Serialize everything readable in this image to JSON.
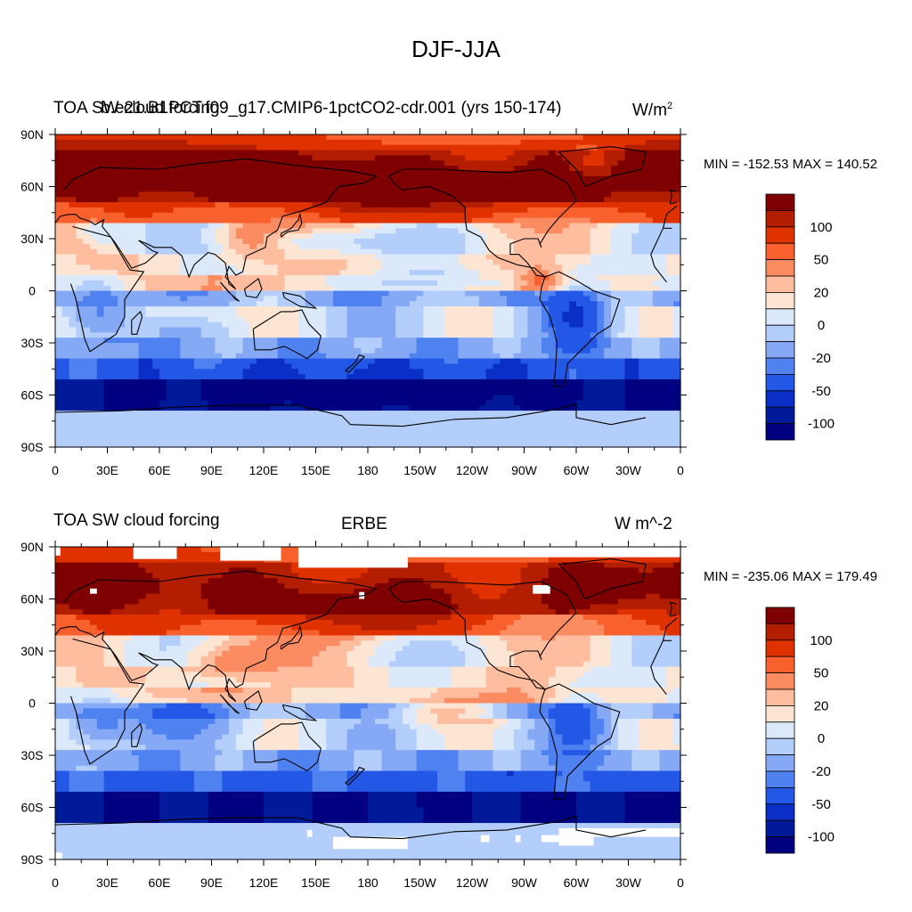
{
  "figure_title": "DJF-JJA",
  "chart_data": [
    {
      "type": "heatmap",
      "title_left": "TOA SW cloud forcing",
      "title_center_overlay": "b.e21.B1PCT.f09_g17.CMIP6-1pctCO2-cdr.001 (yrs 150-174)",
      "units": "W/m",
      "units_sup": "2",
      "min": -152.53,
      "max": 140.52,
      "minmax_label": "MIN = -152.53 MAX = 140.52",
      "x_ticks": [
        "0",
        "30E",
        "60E",
        "90E",
        "120E",
        "150E",
        "180",
        "150W",
        "120W",
        "90W",
        "60W",
        "30W",
        "0"
      ],
      "y_ticks": [
        "90N",
        "60N",
        "30N",
        "0",
        "30S",
        "60S",
        "90S"
      ],
      "colorbar_labels": [
        "100",
        "50",
        "20",
        "0",
        "-20",
        "-50",
        "-100"
      ],
      "colorbar_colors": [
        "#7f0000",
        "#b31d00",
        "#e03200",
        "#f8602d",
        "#fb8c62",
        "#fdbd9e",
        "#fde5d4",
        "#dbe9fa",
        "#b3cefa",
        "#86a9f5",
        "#4f82f0",
        "#2357e6",
        "#0a2fc7",
        "#001a99",
        "#000080"
      ],
      "anomalies": [
        {
          "lon": 20,
          "lat": 72,
          "sx": 55,
          "sy": 10,
          "v": 70
        },
        {
          "lon": 90,
          "lat": 70,
          "sx": 60,
          "sy": 9,
          "v": 60
        },
        {
          "lon": 170,
          "lat": 58,
          "sx": 50,
          "sy": 9,
          "v": 75
        },
        {
          "lon": 330,
          "lat": 70,
          "sx": 25,
          "sy": 8,
          "v": 55
        },
        {
          "lon": 312,
          "lat": 72,
          "sx": 14,
          "sy": 7,
          "v": -90
        },
        {
          "lon": 260,
          "lat": 58,
          "sx": 45,
          "sy": 10,
          "v": 50
        },
        {
          "lon": 110,
          "lat": 30,
          "sx": 14,
          "sy": 8,
          "v": 30
        },
        {
          "lon": 150,
          "lat": 28,
          "sx": 25,
          "sy": 5,
          "v": -25
        },
        {
          "lon": 25,
          "lat": 35,
          "sx": 10,
          "sy": 6,
          "v": -20
        },
        {
          "lon": 25,
          "lat": -12,
          "sx": 12,
          "sy": 12,
          "v": -40
        },
        {
          "lon": 300,
          "lat": -15,
          "sx": 12,
          "sy": 12,
          "v": -60
        },
        {
          "lon": 75,
          "lat": -12,
          "sx": 22,
          "sy": 5,
          "v": 15
        },
        {
          "lon": 240,
          "lat": 5,
          "sx": 45,
          "sy": 4,
          "v": -20
        },
        {
          "lon": 280,
          "lat": 5,
          "sx": 8,
          "sy": 5,
          "v": 35
        },
        {
          "lon": 180,
          "lat": -55,
          "sx": 60,
          "sy": 8,
          "v": -30
        }
      ]
    },
    {
      "type": "heatmap",
      "title_left": "TOA SW cloud forcing",
      "title_center": "ERBE",
      "units": "W m^-2",
      "min": -235.06,
      "max": 179.49,
      "minmax_label": "MIN = -235.06 MAX = 179.49",
      "x_ticks": [
        "0",
        "30E",
        "60E",
        "90E",
        "120E",
        "150E",
        "180",
        "150W",
        "120W",
        "90W",
        "60W",
        "30W",
        "0"
      ],
      "y_ticks": [
        "90N",
        "60N",
        "30N",
        "0",
        "30S",
        "60S",
        "90S"
      ],
      "colorbar_labels": [
        "100",
        "50",
        "20",
        "0",
        "-20",
        "-50",
        "-100"
      ],
      "colorbar_colors": [
        "#7f0000",
        "#b31d00",
        "#e03200",
        "#f8602d",
        "#fb8c62",
        "#fdbd9e",
        "#fde5d4",
        "#dbe9fa",
        "#b3cefa",
        "#86a9f5",
        "#4f82f0",
        "#2357e6",
        "#0a2fc7",
        "#001a99",
        "#000080"
      ],
      "anomalies": [
        {
          "lon": 25,
          "lat": 70,
          "sx": 50,
          "sy": 10,
          "v": 55
        },
        {
          "lon": 170,
          "lat": 55,
          "sx": 60,
          "sy": 10,
          "v": 60
        },
        {
          "lon": 320,
          "lat": 68,
          "sx": 20,
          "sy": 8,
          "v": 50
        },
        {
          "lon": 100,
          "lat": 25,
          "sx": 20,
          "sy": 8,
          "v": 35
        },
        {
          "lon": 70,
          "lat": -10,
          "sx": 25,
          "sy": 8,
          "v": -25
        },
        {
          "lon": 25,
          "lat": -12,
          "sx": 12,
          "sy": 10,
          "v": -35
        },
        {
          "lon": 300,
          "lat": -12,
          "sx": 12,
          "sy": 12,
          "v": -45
        },
        {
          "lon": 230,
          "lat": -5,
          "sx": 30,
          "sy": 5,
          "v": 25
        }
      ],
      "missing_boxes": [
        {
          "lon0": 0,
          "lon1": 3,
          "lat0": 85,
          "lat1": 90
        },
        {
          "lon0": 45,
          "lon1": 70,
          "lat0": 83,
          "lat1": 90
        },
        {
          "lon0": 95,
          "lon1": 130,
          "lat0": 82,
          "lat1": 90
        },
        {
          "lon0": 140,
          "lon1": 203,
          "lat0": 78,
          "lat1": 90
        },
        {
          "lon0": 203,
          "lon1": 360,
          "lat0": 84,
          "lat1": 90
        },
        {
          "lon0": 275,
          "lon1": 285,
          "lat0": 63,
          "lat1": 68
        },
        {
          "lon0": 175,
          "lon1": 178,
          "lat0": 60,
          "lat1": 64
        },
        {
          "lon0": 20,
          "lon1": 24,
          "lat0": 63,
          "lat1": 66
        },
        {
          "lon0": 145,
          "lon1": 148,
          "lat0": -77,
          "lat1": -73
        },
        {
          "lon0": 245,
          "lon1": 250,
          "lat0": -80,
          "lat1": -76
        },
        {
          "lon0": 265,
          "lon1": 268,
          "lat0": -80,
          "lat1": -76
        },
        {
          "lon0": 280,
          "lon1": 295,
          "lat0": -80,
          "lat1": -76
        },
        {
          "lon0": 290,
          "lon1": 360,
          "lat0": -77,
          "lat1": -72
        },
        {
          "lon0": 290,
          "lon1": 310,
          "lat0": -82,
          "lat1": -77
        },
        {
          "lon0": 160,
          "lon1": 203,
          "lat0": -84,
          "lat1": -77
        },
        {
          "lon0": 0,
          "lon1": 4,
          "lat0": -90,
          "lat1": -86
        }
      ]
    }
  ]
}
